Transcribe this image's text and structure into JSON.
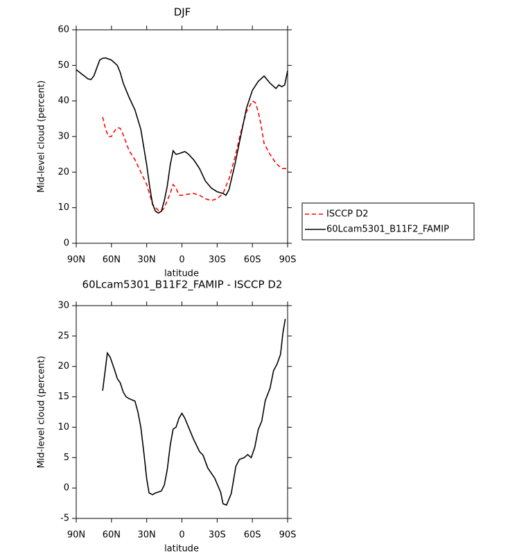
{
  "chart_data": [
    {
      "type": "line",
      "title": "DJF",
      "xlabel": "latitude",
      "ylabel": "Mid-level cloud (percent)",
      "xlim": [
        90,
        -90
      ],
      "xticks": [
        {
          "value": 90,
          "label": "90N"
        },
        {
          "value": 60,
          "label": "60N"
        },
        {
          "value": 30,
          "label": "30N"
        },
        0,
        {
          "value": -30,
          "label": "30S"
        },
        {
          "value": -60,
          "label": "60S"
        },
        {
          "value": -90,
          "label": "90S"
        }
      ],
      "ylim": [
        0,
        60
      ],
      "yticks": [
        0,
        10,
        20,
        30,
        40,
        50,
        60
      ],
      "legend": "right",
      "series": [
        {
          "name": "ISCCP D2",
          "color": "#ff0000",
          "linestyle": "dashed",
          "x": [
            67.5,
            65,
            62.5,
            60,
            57.5,
            55,
            52.5,
            50,
            45,
            40,
            35,
            30,
            25,
            20,
            17.5,
            15,
            10,
            7.5,
            5,
            2.5,
            0,
            -5,
            -10,
            -15,
            -20,
            -25,
            -30,
            -35,
            -40,
            -45,
            -50,
            -55,
            -60,
            -62.5,
            -65,
            -67.5,
            -70,
            -75,
            -80,
            -85,
            -90
          ],
          "values": [
            35.5,
            32,
            30,
            30,
            31.5,
            32.5,
            32.3,
            30.5,
            26,
            23.5,
            20,
            16.5,
            11,
            9.2,
            9,
            10,
            14,
            16.5,
            15.5,
            13.5,
            13.5,
            13.8,
            14,
            13.5,
            12.5,
            12,
            12.5,
            14,
            18,
            24,
            31,
            37,
            40,
            39.5,
            37,
            33,
            28,
            25,
            22.5,
            21,
            21
          ]
        },
        {
          "name": "60Lcam5301_B11F2_FAMIP",
          "color": "#000000",
          "linestyle": "solid",
          "x": [
            90,
            85,
            80,
            77.5,
            75,
            70,
            67.5,
            65,
            60,
            55,
            52.5,
            50,
            45,
            40,
            35,
            30,
            27.5,
            25,
            22.5,
            20,
            17.5,
            15,
            12.5,
            10,
            7.5,
            5,
            2.5,
            0,
            -2.5,
            -5,
            -10,
            -15,
            -20,
            -25,
            -30,
            -35,
            -37.5,
            -40,
            -45,
            -50,
            -55,
            -60,
            -65,
            -70,
            -75,
            -80,
            -82.5,
            -85,
            -87.5,
            -90
          ],
          "values": [
            48.8,
            47.5,
            46.2,
            46,
            47,
            51.5,
            52,
            52.1,
            51.5,
            50,
            48,
            45,
            41,
            37.5,
            32,
            22,
            16,
            11,
            9,
            8.5,
            9,
            12,
            16,
            22,
            26,
            25,
            25.2,
            25.5,
            25.8,
            25.2,
            23.5,
            21,
            17.5,
            15.5,
            14.5,
            14,
            13.5,
            15,
            22,
            30,
            38,
            43,
            45.5,
            47,
            45,
            43.5,
            44.5,
            44,
            44.5,
            48.5
          ]
        }
      ]
    },
    {
      "type": "line",
      "title": "60Lcam5301_B11F2_FAMIP - ISCCP D2",
      "xlabel": "latitude",
      "ylabel": "Mid-level cloud (percent)",
      "xlim": [
        90,
        -90
      ],
      "xticks": [
        {
          "value": 90,
          "label": "90N"
        },
        {
          "value": 60,
          "label": "60N"
        },
        {
          "value": 30,
          "label": "30N"
        },
        0,
        {
          "value": -30,
          "label": "30S"
        },
        {
          "value": -60,
          "label": "60S"
        },
        {
          "value": -90,
          "label": "90S"
        }
      ],
      "ylim": [
        -5,
        30
      ],
      "yticks": [
        -5,
        0,
        5,
        10,
        15,
        20,
        25,
        30
      ],
      "series": [
        {
          "color": "#000000",
          "linestyle": "solid",
          "x": [
            67.5,
            63.5,
            61,
            57.5,
            55,
            52.5,
            50,
            47.5,
            45,
            40,
            37.5,
            35,
            32.5,
            30,
            28,
            25,
            22.5,
            17.5,
            15,
            12.5,
            10,
            7.5,
            5,
            2.5,
            0,
            -2.5,
            -5,
            -10,
            -15,
            -18,
            -22,
            -28,
            -33,
            -35,
            -38,
            -42,
            -46,
            -49,
            -53,
            -56,
            -59,
            -62,
            -65,
            -68,
            -71,
            -75,
            -78,
            -81,
            -84,
            -86,
            -88
          ],
          "values": [
            16,
            22.2,
            21.5,
            19.5,
            18,
            17.3,
            15.8,
            15,
            14.7,
            14.3,
            12.5,
            10,
            6,
            1.5,
            -0.8,
            -1.1,
            -0.8,
            -0.5,
            0.5,
            3,
            7,
            9.7,
            10,
            11.5,
            12.3,
            11.5,
            10.3,
            8,
            6,
            5.4,
            3.3,
            1.6,
            -0.7,
            -2.6,
            -2.8,
            -0.9,
            3.6,
            4.7,
            5,
            5.5,
            5,
            6.7,
            9.6,
            11,
            14.4,
            16.4,
            19.3,
            20.4,
            22,
            25.5,
            27.8
          ]
        }
      ]
    }
  ]
}
